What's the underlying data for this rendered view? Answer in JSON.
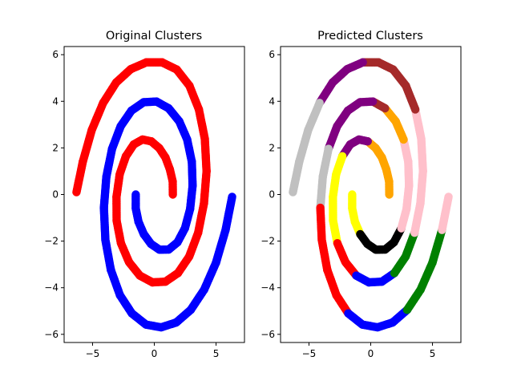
{
  "chart_data": [
    {
      "type": "scatter",
      "title": "Original Clusters",
      "xlabel": "",
      "ylabel": "",
      "xlim": [
        -7.3,
        7.3
      ],
      "ylim": [
        -6.35,
        6.35
      ],
      "xticks": [
        -5,
        0,
        5
      ],
      "yticks": [
        -6,
        -4,
        -2,
        0,
        2,
        4,
        6
      ],
      "grid": false,
      "spiral_inner_index": 0.0,
      "series": [
        {
          "color": "#ff0000",
          "description": "spiral arm A",
          "points": [
            [
              1.5,
              0.0
            ],
            [
              1.49,
              0.56
            ],
            [
              1.26,
              1.08
            ],
            [
              0.9,
              1.59
            ],
            [
              0.4,
              1.99
            ],
            [
              -0.24,
              2.28
            ],
            [
              -0.95,
              2.36
            ],
            [
              -1.66,
              2.15
            ],
            [
              -2.3,
              1.64
            ],
            [
              -2.8,
              0.87
            ],
            [
              -3.06,
              -0.1
            ],
            [
              -3.05,
              -1.12
            ],
            [
              -2.7,
              -2.09
            ],
            [
              -2.05,
              -2.9
            ],
            [
              -1.17,
              -3.48
            ],
            [
              -0.15,
              -3.77
            ],
            [
              0.9,
              -3.74
            ],
            [
              1.92,
              -3.37
            ],
            [
              2.83,
              -2.66
            ],
            [
              3.55,
              -1.64
            ],
            [
              4.02,
              -0.38
            ],
            [
              4.23,
              1.0
            ],
            [
              4.09,
              2.39
            ],
            [
              3.61,
              3.65
            ],
            [
              2.84,
              4.67
            ],
            [
              1.82,
              5.36
            ],
            [
              0.63,
              5.67
            ],
            [
              -0.64,
              5.67
            ],
            [
              -1.9,
              5.38
            ],
            [
              -3.08,
              4.81
            ],
            [
              -4.14,
              3.93
            ],
            [
              -5.06,
              2.77
            ],
            [
              -5.78,
              1.42
            ],
            [
              -6.3,
              0.1
            ]
          ]
        },
        {
          "color": "#0000ff",
          "description": "spiral arm B",
          "points": [
            [
              -1.5,
              0.0
            ],
            [
              -1.5,
              -0.6
            ],
            [
              -1.28,
              -1.17
            ],
            [
              -0.85,
              -1.7
            ],
            [
              -0.27,
              -2.12
            ],
            [
              0.42,
              -2.37
            ],
            [
              1.17,
              -2.36
            ],
            [
              1.88,
              -2.05
            ],
            [
              2.48,
              -1.45
            ],
            [
              2.9,
              -0.62
            ],
            [
              3.1,
              0.38
            ],
            [
              3.04,
              1.4
            ],
            [
              2.66,
              2.36
            ],
            [
              2.02,
              3.14
            ],
            [
              1.16,
              3.7
            ],
            [
              0.17,
              3.99
            ],
            [
              -0.86,
              3.96
            ],
            [
              -1.85,
              3.6
            ],
            [
              -2.72,
              2.93
            ],
            [
              -3.42,
              1.96
            ],
            [
              -3.88,
              0.76
            ],
            [
              -4.08,
              -0.57
            ],
            [
              -3.96,
              -1.95
            ],
            [
              -3.52,
              -3.23
            ],
            [
              -2.78,
              -4.32
            ],
            [
              -1.82,
              -5.1
            ],
            [
              -0.68,
              -5.58
            ],
            [
              0.55,
              -5.7
            ],
            [
              1.78,
              -5.49
            ],
            [
              2.95,
              -4.95
            ],
            [
              4.04,
              -4.08
            ],
            [
              5.0,
              -2.92
            ],
            [
              5.77,
              -1.52
            ],
            [
              6.3,
              -0.1
            ]
          ]
        }
      ]
    },
    {
      "type": "scatter",
      "title": "Predicted Clusters",
      "xlabel": "",
      "ylabel": "",
      "xlim": [
        -7.3,
        7.3
      ],
      "ylim": [
        -6.35,
        6.35
      ],
      "xticks": [
        -5,
        0,
        5
      ],
      "yticks": [
        -6,
        -4,
        -2,
        0,
        2,
        4,
        6
      ],
      "grid": false,
      "series": [
        {
          "color": "#ffa500",
          "points": [
            [
              1.5,
              0.0
            ],
            [
              1.49,
              0.56
            ],
            [
              1.26,
              1.08
            ],
            [
              0.9,
              1.59
            ],
            [
              0.4,
              1.99
            ],
            [
              -0.24,
              2.28
            ]
          ]
        },
        {
          "color": "#800080",
          "points": [
            [
              -0.24,
              2.28
            ],
            [
              -0.95,
              2.36
            ],
            [
              -1.66,
              2.15
            ],
            [
              -2.3,
              1.64
            ]
          ]
        },
        {
          "color": "#ffff00",
          "points": [
            [
              -2.3,
              1.64
            ],
            [
              -2.8,
              0.87
            ],
            [
              -3.06,
              -0.1
            ],
            [
              -3.05,
              -1.12
            ],
            [
              -2.7,
              -2.09
            ]
          ]
        },
        {
          "color": "#ff0000",
          "points": [
            [
              -2.7,
              -2.09
            ],
            [
              -2.05,
              -2.9
            ],
            [
              -1.17,
              -3.48
            ]
          ]
        },
        {
          "color": "#0000ff",
          "points": [
            [
              -1.17,
              -3.48
            ],
            [
              -0.15,
              -3.77
            ],
            [
              0.9,
              -3.74
            ],
            [
              1.92,
              -3.37
            ]
          ]
        },
        {
          "color": "#008000",
          "points": [
            [
              1.92,
              -3.37
            ],
            [
              2.83,
              -2.66
            ],
            [
              3.55,
              -1.64
            ]
          ]
        },
        {
          "color": "#ffc0cb",
          "points": [
            [
              3.55,
              -1.64
            ],
            [
              4.02,
              -0.38
            ],
            [
              4.23,
              1.0
            ],
            [
              4.09,
              2.39
            ],
            [
              3.61,
              3.65
            ]
          ]
        },
        {
          "color": "#a52a2a",
          "points": [
            [
              3.61,
              3.65
            ],
            [
              2.84,
              4.67
            ],
            [
              1.82,
              5.36
            ],
            [
              0.63,
              5.67
            ],
            [
              -0.64,
              5.67
            ]
          ]
        },
        {
          "color": "#800080",
          "points": [
            [
              -0.64,
              5.67
            ],
            [
              -1.9,
              5.38
            ],
            [
              -3.08,
              4.81
            ],
            [
              -4.14,
              3.93
            ]
          ]
        },
        {
          "color": "#c0c0c0",
          "points": [
            [
              -4.14,
              3.93
            ],
            [
              -5.06,
              2.77
            ],
            [
              -5.78,
              1.42
            ],
            [
              -6.3,
              0.1
            ]
          ]
        },
        {
          "color": "#ffff00",
          "points": [
            [
              -1.5,
              0.0
            ],
            [
              -1.5,
              -0.6
            ],
            [
              -1.28,
              -1.17
            ],
            [
              -0.85,
              -1.7
            ]
          ]
        },
        {
          "color": "#000000",
          "points": [
            [
              -0.85,
              -1.7
            ],
            [
              -0.27,
              -2.12
            ],
            [
              0.42,
              -2.37
            ],
            [
              1.17,
              -2.36
            ],
            [
              1.88,
              -2.05
            ],
            [
              2.48,
              -1.45
            ]
          ]
        },
        {
          "color": "#ffc0cb",
          "points": [
            [
              2.48,
              -1.45
            ],
            [
              2.9,
              -0.62
            ],
            [
              3.1,
              0.38
            ],
            [
              3.04,
              1.4
            ],
            [
              2.66,
              2.36
            ]
          ]
        },
        {
          "color": "#ffa500",
          "points": [
            [
              2.66,
              2.36
            ],
            [
              2.02,
              3.14
            ],
            [
              1.16,
              3.7
            ]
          ]
        },
        {
          "color": "#a52a2a",
          "points": [
            [
              1.16,
              3.7
            ],
            [
              0.17,
              3.99
            ]
          ]
        },
        {
          "color": "#800080",
          "points": [
            [
              0.17,
              3.99
            ],
            [
              -0.86,
              3.96
            ],
            [
              -1.85,
              3.6
            ],
            [
              -2.72,
              2.93
            ],
            [
              -3.42,
              1.96
            ]
          ]
        },
        {
          "color": "#c0c0c0",
          "points": [
            [
              -3.42,
              1.96
            ],
            [
              -3.88,
              0.76
            ],
            [
              -4.08,
              -0.57
            ]
          ]
        },
        {
          "color": "#ff0000",
          "points": [
            [
              -4.08,
              -0.57
            ],
            [
              -3.96,
              -1.95
            ],
            [
              -3.52,
              -3.23
            ],
            [
              -2.78,
              -4.32
            ],
            [
              -1.82,
              -5.1
            ]
          ]
        },
        {
          "color": "#0000ff",
          "points": [
            [
              -1.82,
              -5.1
            ],
            [
              -0.68,
              -5.58
            ],
            [
              0.55,
              -5.7
            ],
            [
              1.78,
              -5.49
            ],
            [
              2.95,
              -4.95
            ]
          ]
        },
        {
          "color": "#008000",
          "points": [
            [
              2.95,
              -4.95
            ],
            [
              4.04,
              -4.08
            ],
            [
              5.0,
              -2.92
            ],
            [
              5.77,
              -1.52
            ]
          ]
        },
        {
          "color": "#ffc0cb",
          "points": [
            [
              5.77,
              -1.52
            ],
            [
              6.3,
              -0.1
            ]
          ]
        }
      ]
    }
  ]
}
